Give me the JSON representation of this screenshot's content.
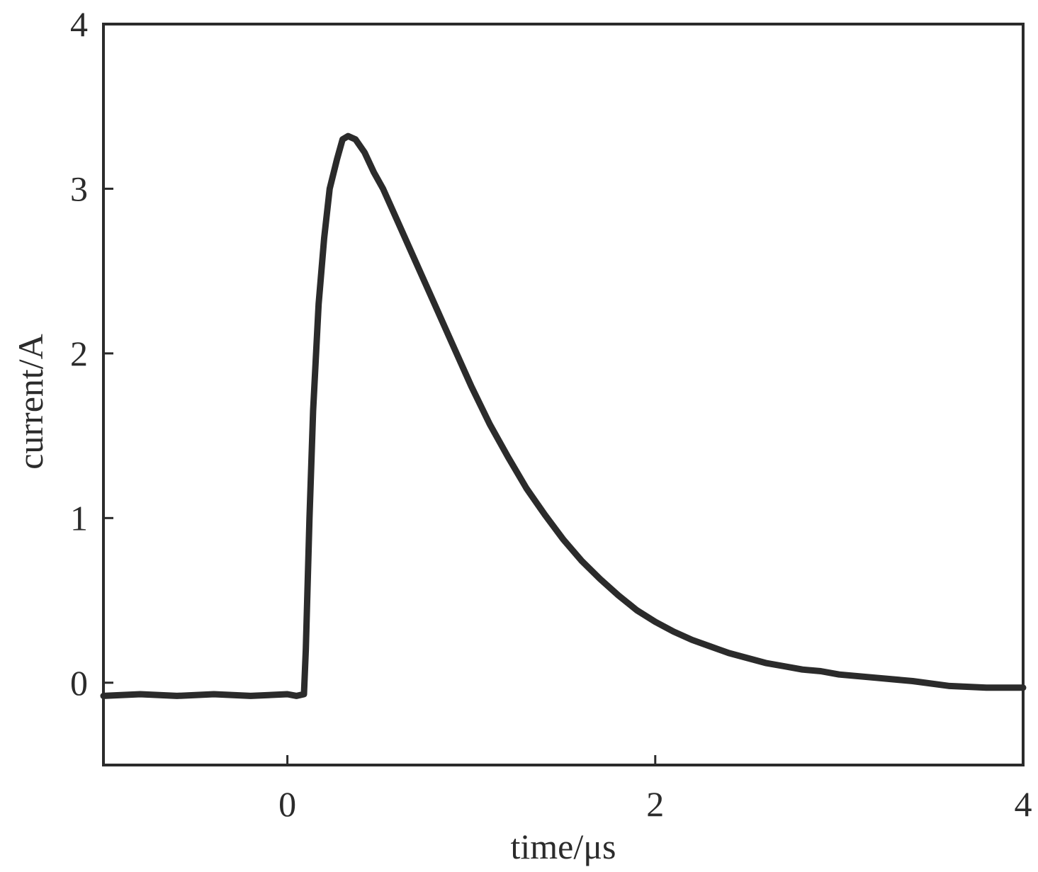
{
  "chart_data": {
    "type": "line",
    "title": "",
    "xlabel": "time/μs",
    "ylabel": "current/A",
    "xlim": [
      -1,
      4
    ],
    "ylim": [
      -0.5,
      4
    ],
    "xticks": [
      0,
      2,
      4
    ],
    "yticks": [
      0,
      1,
      2,
      3,
      4
    ],
    "grid": false,
    "legend": "none",
    "line_color": "#2b2b2b",
    "series": [
      {
        "x": [
          -1.0,
          -0.8,
          -0.6,
          -0.4,
          -0.2,
          0.0,
          0.05,
          0.09,
          0.1,
          0.12,
          0.14,
          0.17,
          0.2,
          0.23,
          0.27,
          0.3,
          0.33,
          0.37,
          0.42,
          0.47,
          0.52,
          0.6,
          0.7,
          0.8,
          0.9,
          1.0,
          1.1,
          1.2,
          1.3,
          1.4,
          1.5,
          1.6,
          1.7,
          1.8,
          1.9,
          2.0,
          2.1,
          2.2,
          2.3,
          2.4,
          2.5,
          2.6,
          2.7,
          2.8,
          2.9,
          3.0,
          3.2,
          3.4,
          3.6,
          3.8,
          4.0
        ],
        "y": [
          -0.08,
          -0.07,
          -0.08,
          -0.07,
          -0.08,
          -0.07,
          -0.08,
          -0.07,
          0.2,
          1.0,
          1.65,
          2.3,
          2.7,
          3.0,
          3.18,
          3.3,
          3.32,
          3.3,
          3.22,
          3.1,
          3.0,
          2.8,
          2.55,
          2.3,
          2.05,
          1.8,
          1.57,
          1.37,
          1.18,
          1.02,
          0.87,
          0.74,
          0.63,
          0.53,
          0.44,
          0.37,
          0.31,
          0.26,
          0.22,
          0.18,
          0.15,
          0.12,
          0.1,
          0.08,
          0.07,
          0.05,
          0.03,
          0.01,
          -0.02,
          -0.03,
          -0.03
        ]
      }
    ]
  }
}
